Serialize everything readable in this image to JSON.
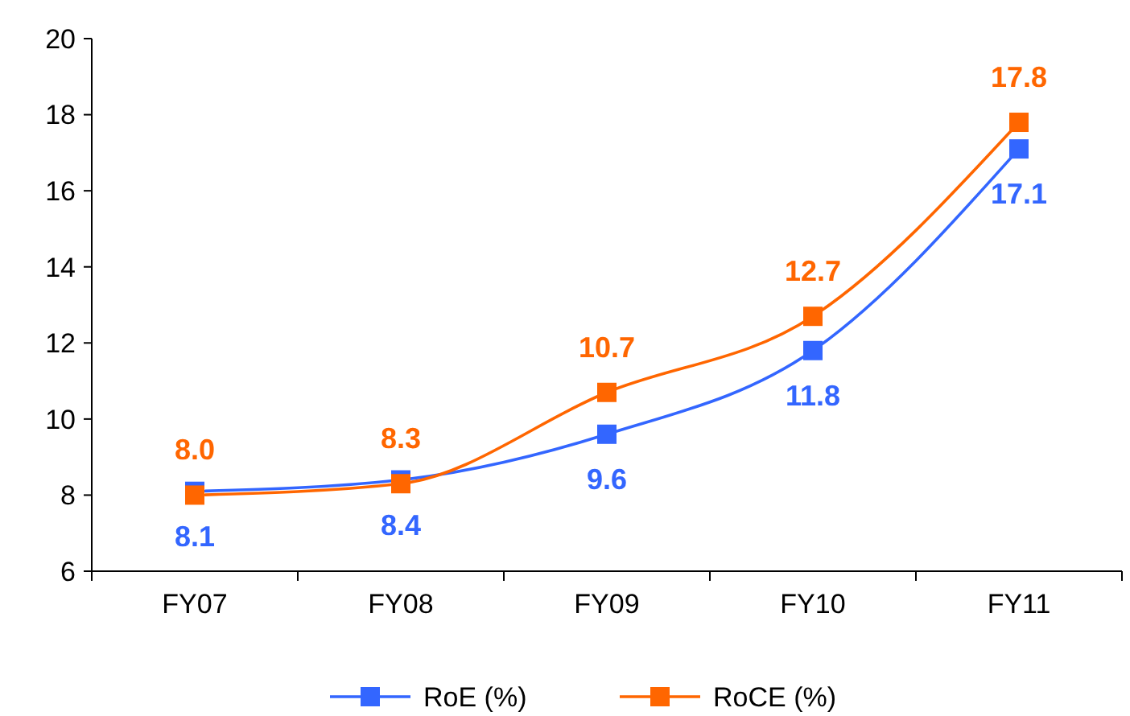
{
  "chart_data": {
    "type": "line",
    "categories": [
      "FY07",
      "FY08",
      "FY09",
      "FY10",
      "FY11"
    ],
    "series": [
      {
        "name": "RoE (%)",
        "color": "#3366ff",
        "values": [
          8.1,
          8.4,
          9.6,
          11.8,
          17.1
        ],
        "value_labels": [
          "8.1",
          "8.4",
          "9.6",
          "11.8",
          "17.1"
        ]
      },
      {
        "name": "RoCE (%)",
        "color": "#ff6600",
        "values": [
          8.0,
          8.3,
          10.7,
          12.7,
          17.8
        ],
        "value_labels": [
          "8.0",
          "8.3",
          "10.7",
          "12.7",
          "17.8"
        ]
      }
    ],
    "ylim": [
      6,
      20
    ],
    "yticks": [
      6,
      8,
      10,
      12,
      14,
      16,
      18,
      20
    ],
    "grid": false,
    "legend": "bottom",
    "marker": "square",
    "line_style": "solid"
  }
}
